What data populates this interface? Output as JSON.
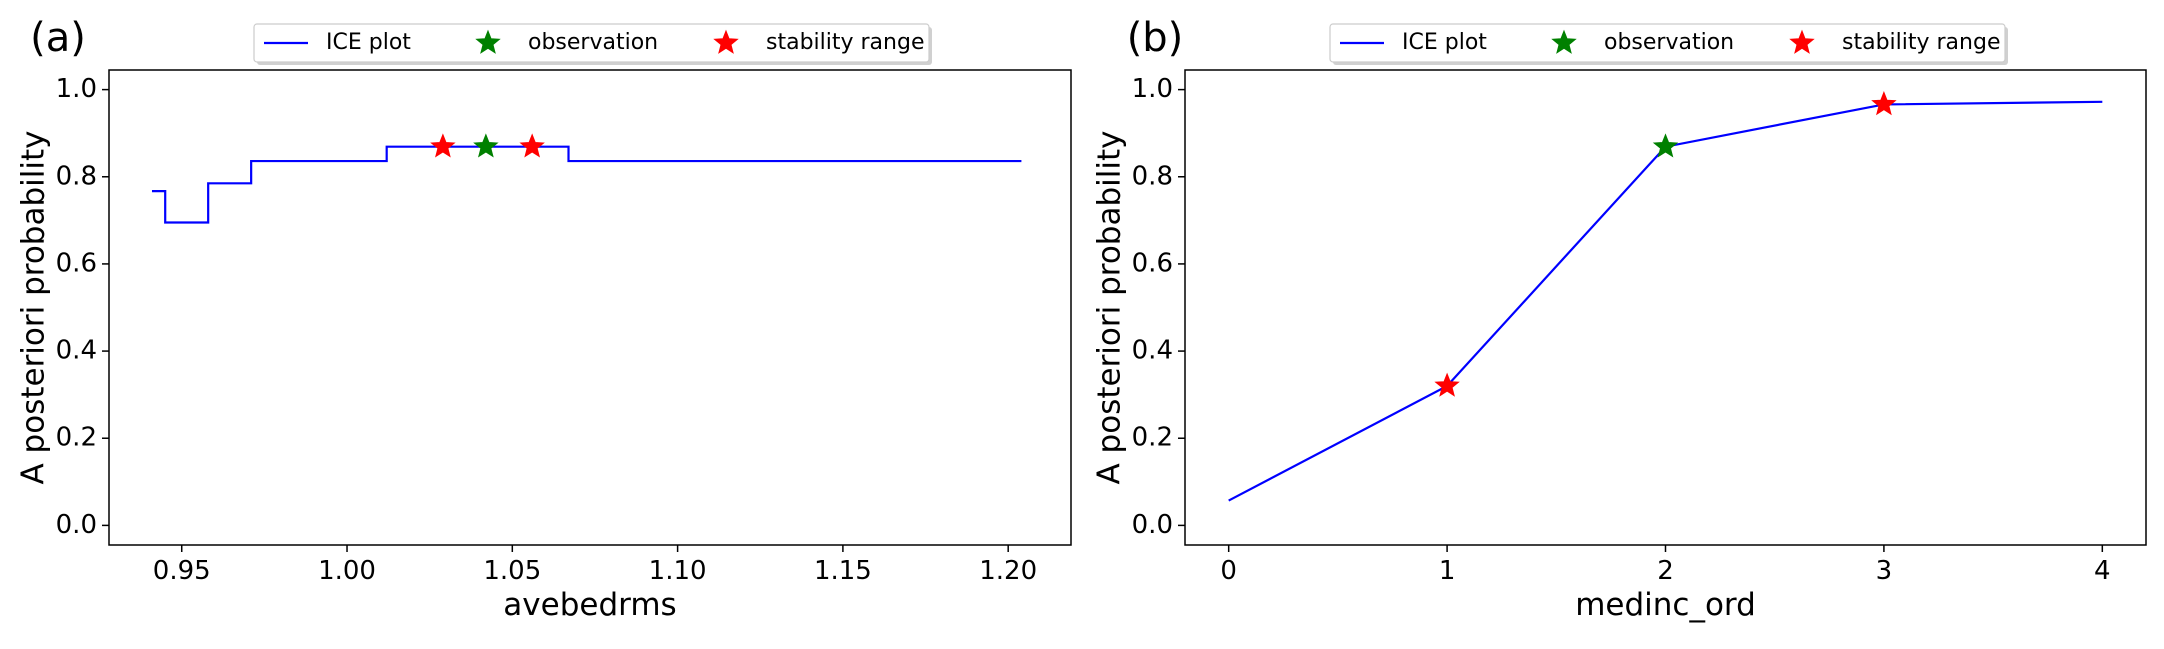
{
  "chart_data": [
    {
      "type": "line",
      "panel_label": "(a)",
      "xlabel": "avebedrms",
      "ylabel": "A posteriori probability",
      "xlim": [
        0.928,
        1.219
      ],
      "ylim": [
        -0.045,
        1.045
      ],
      "xticks": [
        0.95,
        1.0,
        1.05,
        1.1,
        1.15,
        1.2
      ],
      "xtick_labels": [
        "0.95",
        "1.00",
        "1.05",
        "1.10",
        "1.15",
        "1.20"
      ],
      "yticks": [
        0.0,
        0.2,
        0.4,
        0.6,
        0.8,
        1.0
      ],
      "ytick_labels": [
        "0.0",
        "0.2",
        "0.4",
        "0.6",
        "0.8",
        "1.0"
      ],
      "step": true,
      "series": [
        {
          "name": "ICE plot",
          "color": "#0000ff",
          "x": [
            0.941,
            0.945,
            0.958,
            0.971,
            1.012,
            1.067,
            1.204
          ],
          "y": [
            0.767,
            0.695,
            0.785,
            0.836,
            0.869,
            0.836,
            0.836
          ]
        }
      ],
      "observation": {
        "name": "observation",
        "color": "#008000",
        "x": 1.042,
        "y": 0.869
      },
      "stability_range": {
        "name": "stability range",
        "color": "#ff0000",
        "points": [
          {
            "x": 1.029,
            "y": 0.869
          },
          {
            "x": 1.056,
            "y": 0.869
          }
        ]
      },
      "legend": [
        {
          "label": "ICE plot",
          "marker": "line",
          "color": "#0000ff"
        },
        {
          "label": "observation",
          "marker": "star",
          "color": "#008000"
        },
        {
          "label": "stability range",
          "marker": "star",
          "color": "#ff0000"
        }
      ],
      "legend_position": "top-center"
    },
    {
      "type": "line",
      "panel_label": "(b)",
      "xlabel": "medinc_ord",
      "ylabel": "A posteriori probability",
      "xlim": [
        -0.2,
        4.2
      ],
      "ylim": [
        -0.045,
        1.045
      ],
      "xticks": [
        0,
        1,
        2,
        3,
        4
      ],
      "xtick_labels": [
        "0",
        "1",
        "2",
        "3",
        "4"
      ],
      "yticks": [
        0.0,
        0.2,
        0.4,
        0.6,
        0.8,
        1.0
      ],
      "ytick_labels": [
        "0.0",
        "0.2",
        "0.4",
        "0.6",
        "0.8",
        "1.0"
      ],
      "step": false,
      "series": [
        {
          "name": "ICE plot",
          "color": "#0000ff",
          "x": [
            0,
            1,
            2,
            3,
            4
          ],
          "y": [
            0.057,
            0.32,
            0.869,
            0.966,
            0.972
          ]
        }
      ],
      "observation": {
        "name": "observation",
        "color": "#008000",
        "x": 2,
        "y": 0.869
      },
      "stability_range": {
        "name": "stability range",
        "color": "#ff0000",
        "points": [
          {
            "x": 1,
            "y": 0.32
          },
          {
            "x": 3,
            "y": 0.966
          }
        ]
      },
      "legend": [
        {
          "label": "ICE plot",
          "marker": "line",
          "color": "#0000ff"
        },
        {
          "label": "observation",
          "marker": "star",
          "color": "#008000"
        },
        {
          "label": "stability range",
          "marker": "star",
          "color": "#ff0000"
        }
      ],
      "legend_position": "top-center"
    }
  ]
}
